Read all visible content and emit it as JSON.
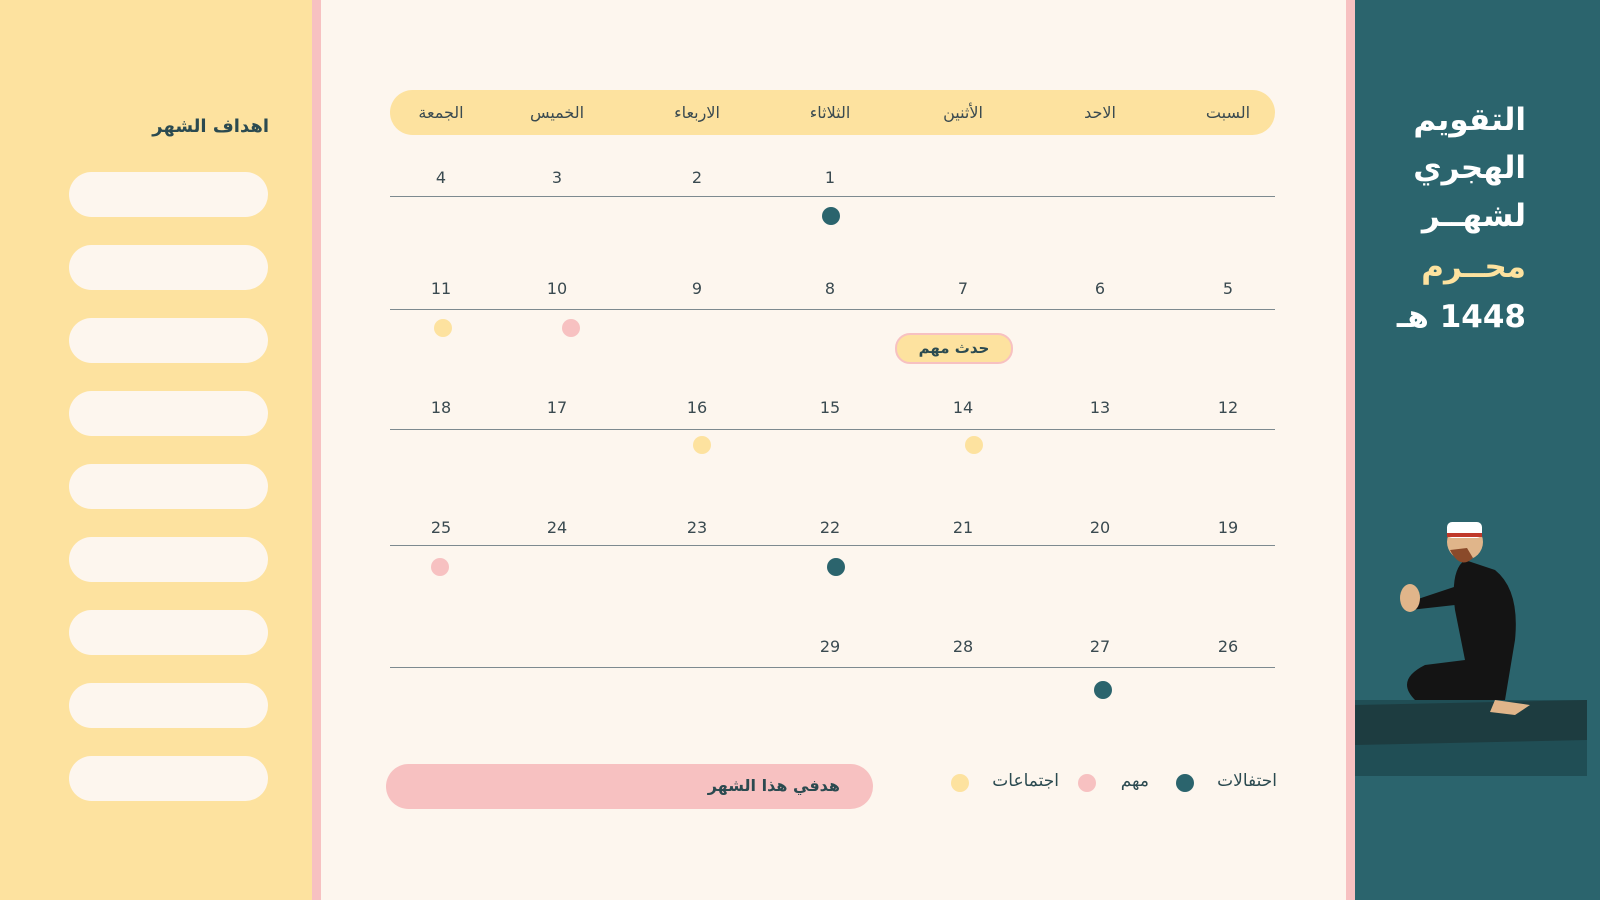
{
  "goals_panel": {
    "title": "اهداف الشهر"
  },
  "header": {
    "lines": [
      "التقويم",
      "الهجري",
      "لشهــر",
      "محــرم",
      "1448 هـ"
    ]
  },
  "calendar": {
    "weekdays": [
      "السبت",
      "الاحد",
      "الأثنين",
      "الثلاثاء",
      "الاربعاء",
      "الخميس",
      "الجمعة"
    ],
    "weeks": [
      [
        null,
        null,
        null,
        1,
        2,
        3,
        4
      ],
      [
        5,
        6,
        7,
        8,
        9,
        10,
        11
      ],
      [
        12,
        13,
        14,
        15,
        16,
        17,
        18
      ],
      [
        19,
        20,
        21,
        22,
        23,
        24,
        25
      ],
      [
        26,
        27,
        28,
        29,
        null,
        null,
        null
      ]
    ],
    "event_label": "حدث مهم"
  },
  "legend": [
    "احتفالات",
    "مهم",
    "اجتماعات"
  ],
  "monthly_goal": "هدفي هذا الشهر"
}
